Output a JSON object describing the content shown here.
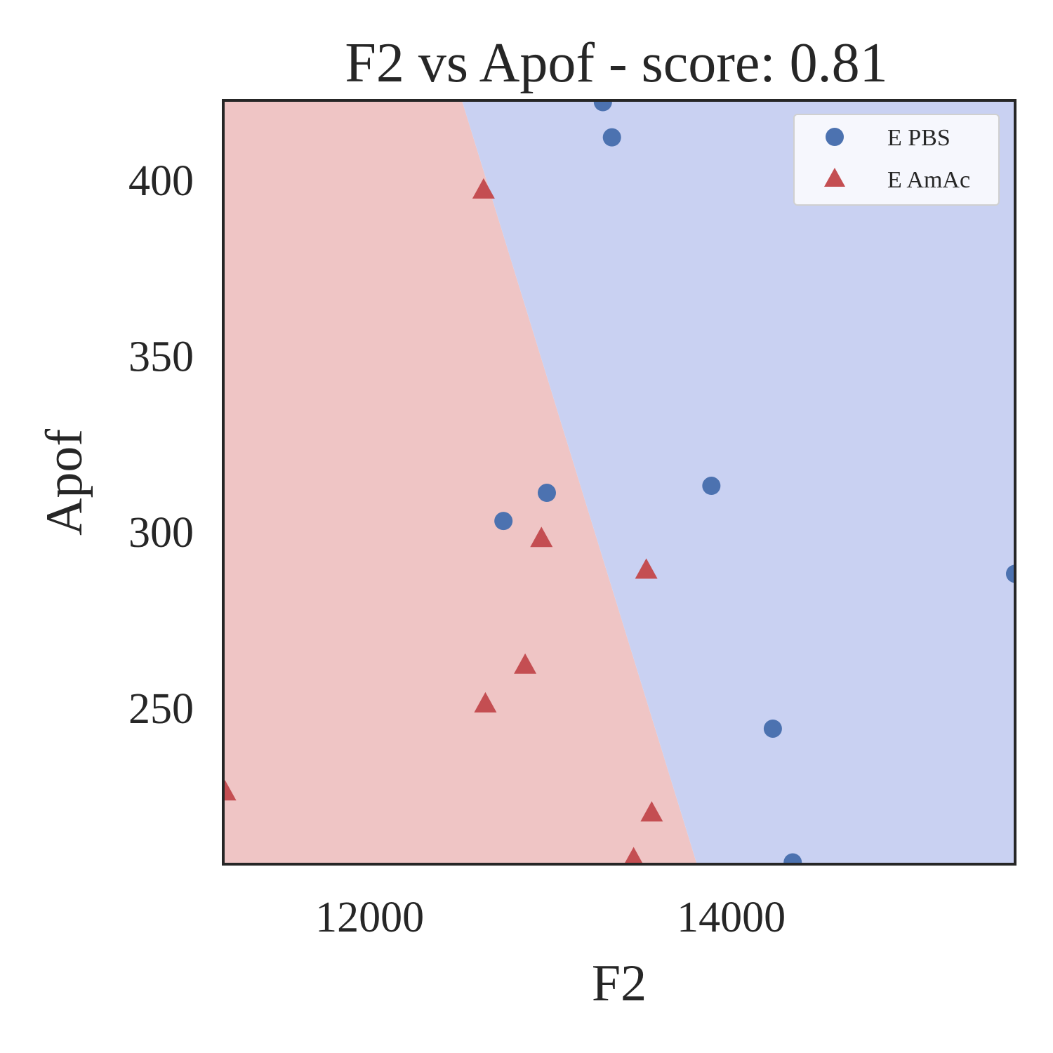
{
  "chart_data": {
    "type": "scatter",
    "title": "F2 vs Apof - score: 0.81",
    "xlabel": "F2",
    "ylabel": "Apof",
    "xlim": [
      11190,
      15570
    ],
    "ylim": [
      205.5,
      422.5
    ],
    "xticks": [
      12000,
      14000
    ],
    "yticks": [
      250,
      300,
      350,
      400
    ],
    "grid": false,
    "legend_position": "top-right",
    "decision_boundary": {
      "points": [
        [
          12510,
          422.5
        ],
        [
          13810,
          205.5
        ]
      ],
      "left_region_color": "#efc5c5",
      "right_region_color": "#c9d1f2"
    },
    "series": [
      {
        "name": "E PBS",
        "marker": "circle",
        "color": "#4c72b0",
        "points": [
          [
            13290,
            422
          ],
          [
            13340,
            412
          ],
          [
            12740,
            303
          ],
          [
            12980,
            311
          ],
          [
            13890,
            313
          ],
          [
            14230,
            244
          ],
          [
            14340,
            206
          ],
          [
            15570,
            288
          ]
        ]
      },
      {
        "name": "E AmAc",
        "marker": "triangle",
        "color": "#c44e52",
        "points": [
          [
            12630,
            397
          ],
          [
            12950,
            298
          ],
          [
            13530,
            289
          ],
          [
            12860,
            262
          ],
          [
            12640,
            251
          ],
          [
            11200,
            226
          ],
          [
            13560,
            220
          ],
          [
            13460,
            207
          ]
        ]
      }
    ]
  }
}
